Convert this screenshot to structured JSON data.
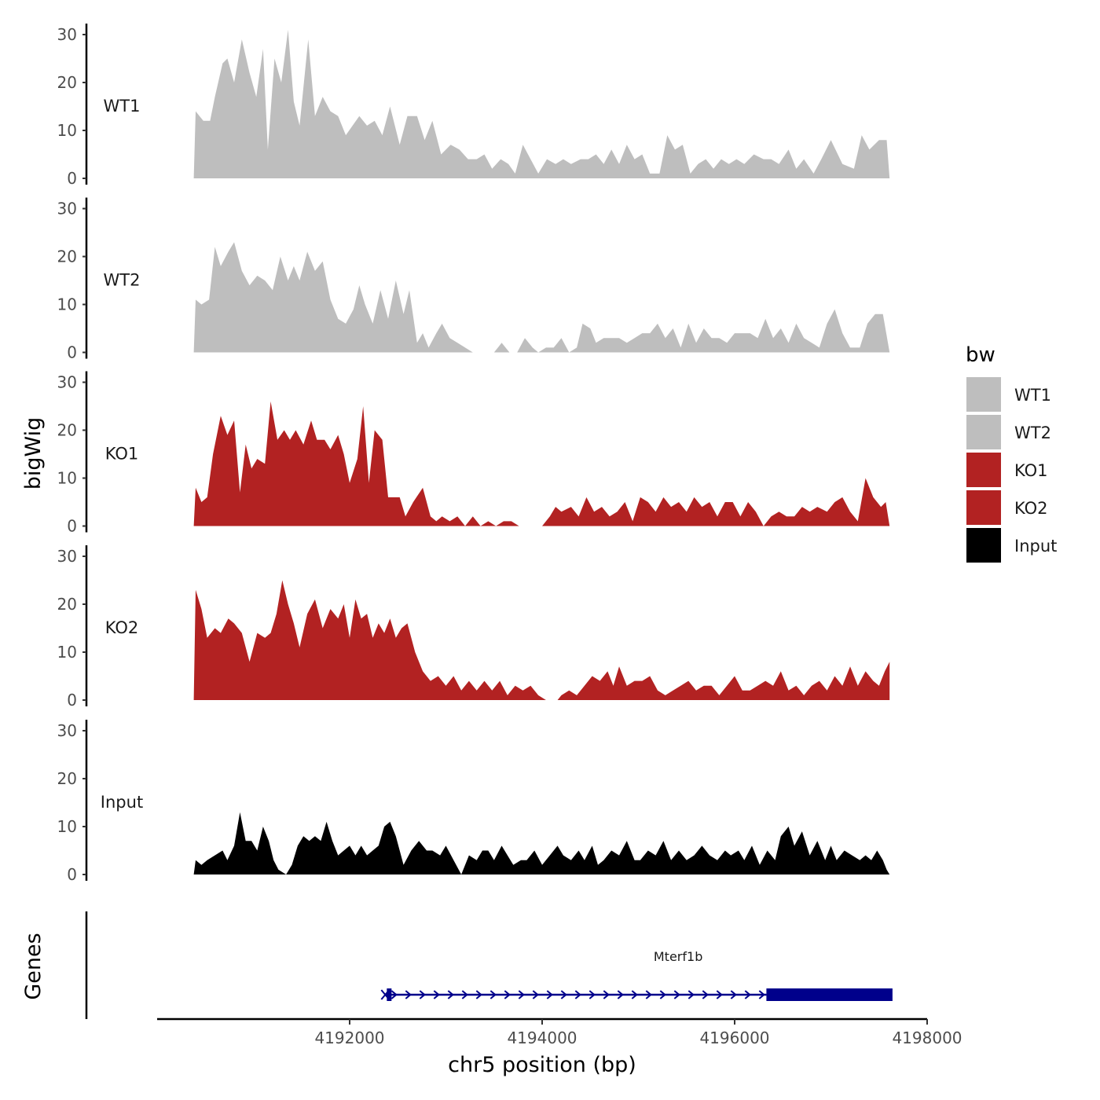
{
  "chart_data": {
    "type": "area",
    "title": "",
    "xlabel": "chr5 position (bp)",
    "ylabel": "bigWig",
    "gene_track_label": "Genes",
    "xlim": [
      4190000,
      4198000
    ],
    "x_ticks": [
      4192000,
      4194000,
      4196000,
      4198000
    ],
    "x_tick_labels": [
      "4192000",
      "4194000",
      "4196000",
      "4198000"
    ],
    "ylim": [
      0,
      32
    ],
    "y_ticks": [
      0,
      10,
      20,
      30
    ],
    "y_tick_labels": [
      "0",
      "10",
      "20",
      "30"
    ],
    "legend": {
      "title": "bw",
      "position": "right",
      "entries": [
        {
          "label": "WT1",
          "color": "#bebebe"
        },
        {
          "label": "WT2",
          "color": "#bebebe"
        },
        {
          "label": "KO1",
          "color": "#b22222"
        },
        {
          "label": "KO2",
          "color": "#b22222"
        },
        {
          "label": "Input",
          "color": "#000000"
        }
      ]
    },
    "series": [
      {
        "name": "WT1",
        "color": "#bebebe",
        "x": [
          4190380,
          4190400,
          4190480,
          4190550,
          4190600,
          4190680,
          4190730,
          4190800,
          4190880,
          4190960,
          4191030,
          4191100,
          4191150,
          4191220,
          4191290,
          4191360,
          4191420,
          4191480,
          4191570,
          4191640,
          4191720,
          4191800,
          4191880,
          4191960,
          4192030,
          4192100,
          4192180,
          4192260,
          4192340,
          4192420,
          4192520,
          4192600,
          4192700,
          4192780,
          4192860,
          4192950,
          4193050,
          4193140,
          4193230,
          4193320,
          4193400,
          4193480,
          4193570,
          4193650,
          4193720,
          4193800,
          4193880,
          4193960,
          4194050,
          4194140,
          4194220,
          4194300,
          4194400,
          4194480,
          4194560,
          4194640,
          4194720,
          4194800,
          4194880,
          4194960,
          4195040,
          4195120,
          4195220,
          4195300,
          4195380,
          4195460,
          4195540,
          4195620,
          4195700,
          4195780,
          4195860,
          4195940,
          4196020,
          4196100,
          4196200,
          4196300,
          4196380,
          4196460,
          4196560,
          4196640,
          4196720,
          4196820,
          4196900,
          4197000,
          4197120,
          4197240,
          4197320,
          4197400,
          4197500,
          4197580,
          4197610
        ],
        "values": [
          0,
          14,
          12,
          12,
          17,
          24,
          25,
          20,
          29,
          22,
          17,
          27,
          6,
          25,
          20,
          31,
          16,
          11,
          29,
          13,
          17,
          14,
          13,
          9,
          11,
          13,
          11,
          12,
          9,
          15,
          7,
          13,
          13,
          8,
          12,
          5,
          7,
          6,
          4,
          4,
          5,
          2,
          4,
          3,
          1,
          7,
          4,
          1,
          4,
          3,
          4,
          3,
          4,
          4,
          5,
          3,
          6,
          3,
          7,
          4,
          5,
          1,
          1,
          9,
          6,
          7,
          1,
          3,
          4,
          2,
          4,
          3,
          4,
          3,
          5,
          4,
          4,
          3,
          6,
          2,
          4,
          1,
          4,
          8,
          3,
          2,
          9,
          6,
          8,
          8,
          0
        ]
      },
      {
        "name": "WT2",
        "color": "#bebebe",
        "x": [
          4190380,
          4190400,
          4190460,
          4190540,
          4190600,
          4190660,
          4190740,
          4190800,
          4190880,
          4190960,
          4191040,
          4191120,
          4191200,
          4191280,
          4191360,
          4191420,
          4191480,
          4191560,
          4191640,
          4191720,
          4191800,
          4191880,
          4191960,
          4192040,
          4192100,
          4192160,
          4192240,
          4192320,
          4192400,
          4192480,
          4192560,
          4192620,
          4192700,
          4192760,
          4192820,
          4192900,
          4192960,
          4193040,
          4193120,
          4193200,
          4193280,
          4193360,
          4193420,
          4193500,
          4193580,
          4193660,
          4193740,
          4193820,
          4193900,
          4193960,
          4194040,
          4194120,
          4194200,
          4194280,
          4194360,
          4194420,
          4194500,
          4194560,
          4194640,
          4194720,
          4194800,
          4194880,
          4194960,
          4195040,
          4195120,
          4195200,
          4195280,
          4195360,
          4195440,
          4195520,
          4195600,
          4195680,
          4195760,
          4195840,
          4195920,
          4196000,
          4196080,
          4196160,
          4196240,
          4196320,
          4196400,
          4196480,
          4196560,
          4196640,
          4196720,
          4196800,
          4196880,
          4196960,
          4197040,
          4197120,
          4197200,
          4197300,
          4197380,
          4197460,
          4197540,
          4197610
        ],
        "values": [
          0,
          11,
          10,
          11,
          22,
          18,
          21,
          23,
          17,
          14,
          16,
          15,
          13,
          20,
          15,
          18,
          15,
          21,
          17,
          19,
          11,
          7,
          6,
          9,
          14,
          10,
          6,
          13,
          7,
          15,
          8,
          13,
          2,
          4,
          1,
          4,
          6,
          3,
          2,
          1,
          0,
          0,
          0,
          0,
          2,
          0,
          0,
          3,
          1,
          0,
          1,
          1,
          3,
          0,
          1,
          6,
          5,
          2,
          3,
          3,
          3,
          2,
          3,
          4,
          4,
          6,
          3,
          5,
          1,
          6,
          2,
          5,
          3,
          3,
          2,
          4,
          4,
          4,
          3,
          7,
          3,
          5,
          2,
          6,
          3,
          2,
          1,
          6,
          9,
          4,
          1,
          1,
          6,
          8,
          8,
          0
        ]
      },
      {
        "name": "KO1",
        "color": "#b22222",
        "x": [
          4190380,
          4190400,
          4190460,
          4190520,
          4190580,
          4190660,
          4190730,
          4190800,
          4190860,
          4190920,
          4190980,
          4191040,
          4191120,
          4191180,
          4191250,
          4191320,
          4191380,
          4191440,
          4191520,
          4191600,
          4191660,
          4191740,
          4191800,
          4191880,
          4191940,
          4192000,
          4192080,
          4192140,
          4192200,
          4192260,
          4192340,
          4192400,
          4192460,
          4192520,
          4192580,
          4192660,
          4192760,
          4192840,
          4192900,
          4192960,
          4193040,
          4193120,
          4193200,
          4193280,
          4193360,
          4193440,
          4193520,
          4193600,
          4193680,
          4193760,
          4193840,
          4193920,
          4194000,
          4194080,
          4194140,
          4194200,
          4194300,
          4194380,
          4194460,
          4194540,
          4194620,
          4194700,
          4194780,
          4194860,
          4194940,
          4195020,
          4195100,
          4195180,
          4195260,
          4195340,
          4195420,
          4195500,
          4195580,
          4195660,
          4195740,
          4195820,
          4195900,
          4195980,
          4196060,
          4196140,
          4196220,
          4196300,
          4196380,
          4196460,
          4196540,
          4196620,
          4196700,
          4196780,
          4196860,
          4196960,
          4197040,
          4197120,
          4197200,
          4197280,
          4197360,
          4197440,
          4197520,
          4197570,
          4197610
        ],
        "values": [
          0,
          8,
          5,
          6,
          15,
          23,
          19,
          22,
          7,
          17,
          12,
          14,
          13,
          26,
          18,
          20,
          18,
          20,
          17,
          22,
          18,
          18,
          16,
          19,
          15,
          9,
          14,
          25,
          9,
          20,
          18,
          6,
          6,
          6,
          2,
          5,
          8,
          2,
          1,
          2,
          1,
          2,
          0,
          2,
          0,
          1,
          0,
          1,
          1,
          0,
          0,
          0,
          0,
          2,
          4,
          3,
          4,
          2,
          6,
          3,
          4,
          2,
          3,
          5,
          1,
          6,
          5,
          3,
          6,
          4,
          5,
          3,
          6,
          4,
          5,
          2,
          5,
          5,
          2,
          5,
          3,
          0,
          2,
          3,
          2,
          2,
          4,
          3,
          4,
          3,
          5,
          6,
          3,
          1,
          10,
          6,
          4,
          5,
          0
        ]
      },
      {
        "name": "KO2",
        "color": "#b22222",
        "x": [
          4190380,
          4190400,
          4190460,
          4190520,
          4190600,
          4190660,
          4190740,
          4190800,
          4190880,
          4190960,
          4191040,
          4191120,
          4191180,
          4191240,
          4191300,
          4191360,
          4191420,
          4191480,
          4191560,
          4191640,
          4191720,
          4191800,
          4191880,
          4191940,
          4192000,
          4192060,
          4192120,
          4192180,
          4192240,
          4192300,
          4192360,
          4192420,
          4192480,
          4192540,
          4192600,
          4192680,
          4192760,
          4192840,
          4192920,
          4193000,
          4193080,
          4193160,
          4193240,
          4193320,
          4193400,
          4193480,
          4193560,
          4193640,
          4193720,
          4193800,
          4193880,
          4193960,
          4194040,
          4194100,
          4194160,
          4194200,
          4194280,
          4194360,
          4194440,
          4194520,
          4194600,
          4194680,
          4194740,
          4194800,
          4194880,
          4194960,
          4195040,
          4195120,
          4195200,
          4195280,
          4195360,
          4195440,
          4195520,
          4195600,
          4195680,
          4195760,
          4195840,
          4195920,
          4196000,
          4196080,
          4196160,
          4196240,
          4196320,
          4196400,
          4196480,
          4196560,
          4196640,
          4196720,
          4196800,
          4196880,
          4196960,
          4197040,
          4197120,
          4197200,
          4197280,
          4197360,
          4197440,
          4197500,
          4197560,
          4197610
        ],
        "values": [
          0,
          23,
          19,
          13,
          15,
          14,
          17,
          16,
          14,
          8,
          14,
          13,
          14,
          18,
          25,
          20,
          16,
          11,
          18,
          21,
          15,
          19,
          17,
          20,
          13,
          21,
          17,
          18,
          13,
          16,
          14,
          17,
          13,
          15,
          16,
          10,
          6,
          4,
          5,
          3,
          5,
          2,
          4,
          2,
          4,
          2,
          4,
          1,
          3,
          2,
          3,
          1,
          0,
          0,
          0,
          1,
          2,
          1,
          3,
          5,
          4,
          6,
          3,
          7,
          3,
          4,
          4,
          5,
          2,
          1,
          2,
          3,
          4,
          2,
          3,
          3,
          1,
          3,
          5,
          2,
          2,
          3,
          4,
          3,
          6,
          2,
          3,
          1,
          3,
          4,
          2,
          5,
          3,
          7,
          3,
          6,
          4,
          3,
          6,
          8
        ]
      },
      {
        "name": "Input",
        "color": "#000000",
        "x": [
          4190380,
          4190400,
          4190460,
          4190520,
          4190600,
          4190680,
          4190730,
          4190800,
          4190860,
          4190920,
          4190980,
          4191040,
          4191100,
          4191160,
          4191210,
          4191260,
          4191340,
          4191400,
          4191460,
          4191520,
          4191580,
          4191640,
          4191700,
          4191760,
          4191820,
          4191880,
          4191940,
          4192000,
          4192060,
          4192120,
          4192180,
          4192240,
          4192300,
          4192360,
          4192420,
          4192480,
          4192560,
          4192640,
          4192720,
          4192800,
          4192860,
          4192940,
          4193000,
          4193080,
          4193160,
          4193240,
          4193320,
          4193380,
          4193440,
          4193500,
          4193580,
          4193640,
          4193700,
          4193780,
          4193840,
          4193920,
          4194000,
          4194080,
          4194160,
          4194220,
          4194300,
          4194380,
          4194440,
          4194520,
          4194580,
          4194640,
          4194720,
          4194800,
          4194880,
          4194960,
          4195020,
          4195100,
          4195180,
          4195260,
          4195340,
          4195420,
          4195500,
          4195580,
          4195660,
          4195740,
          4195820,
          4195900,
          4195960,
          4196040,
          4196100,
          4196180,
          4196260,
          4196340,
          4196420,
          4196480,
          4196560,
          4196620,
          4196700,
          4196780,
          4196860,
          4196940,
          4197000,
          4197060,
          4197140,
          4197220,
          4197300,
          4197360,
          4197420,
          4197480,
          4197540,
          4197580,
          4197610
        ],
        "values": [
          0,
          3,
          2,
          3,
          4,
          5,
          3,
          6,
          13,
          7,
          7,
          5,
          10,
          7,
          3,
          1,
          0,
          2,
          6,
          8,
          7,
          8,
          7,
          11,
          7,
          4,
          5,
          6,
          4,
          6,
          4,
          5,
          6,
          10,
          11,
          8,
          2,
          5,
          7,
          5,
          5,
          4,
          6,
          3,
          0,
          4,
          3,
          5,
          5,
          3,
          6,
          4,
          2,
          3,
          3,
          5,
          2,
          4,
          6,
          4,
          3,
          5,
          3,
          6,
          2,
          3,
          5,
          4,
          7,
          3,
          3,
          5,
          4,
          7,
          3,
          5,
          3,
          4,
          6,
          4,
          3,
          5,
          4,
          5,
          3,
          6,
          2,
          5,
          3,
          8,
          10,
          6,
          9,
          4,
          7,
          3,
          6,
          3,
          5,
          4,
          3,
          4,
          3,
          5,
          3,
          1,
          0
        ]
      }
    ],
    "gene": {
      "name": "Mterf1b",
      "strand": "+",
      "intron": [
        4192370,
        4196330
      ],
      "utr5": [
        4192370,
        4192430
      ],
      "cds": [
        4196330,
        4197640
      ],
      "color": "#00008b"
    }
  }
}
